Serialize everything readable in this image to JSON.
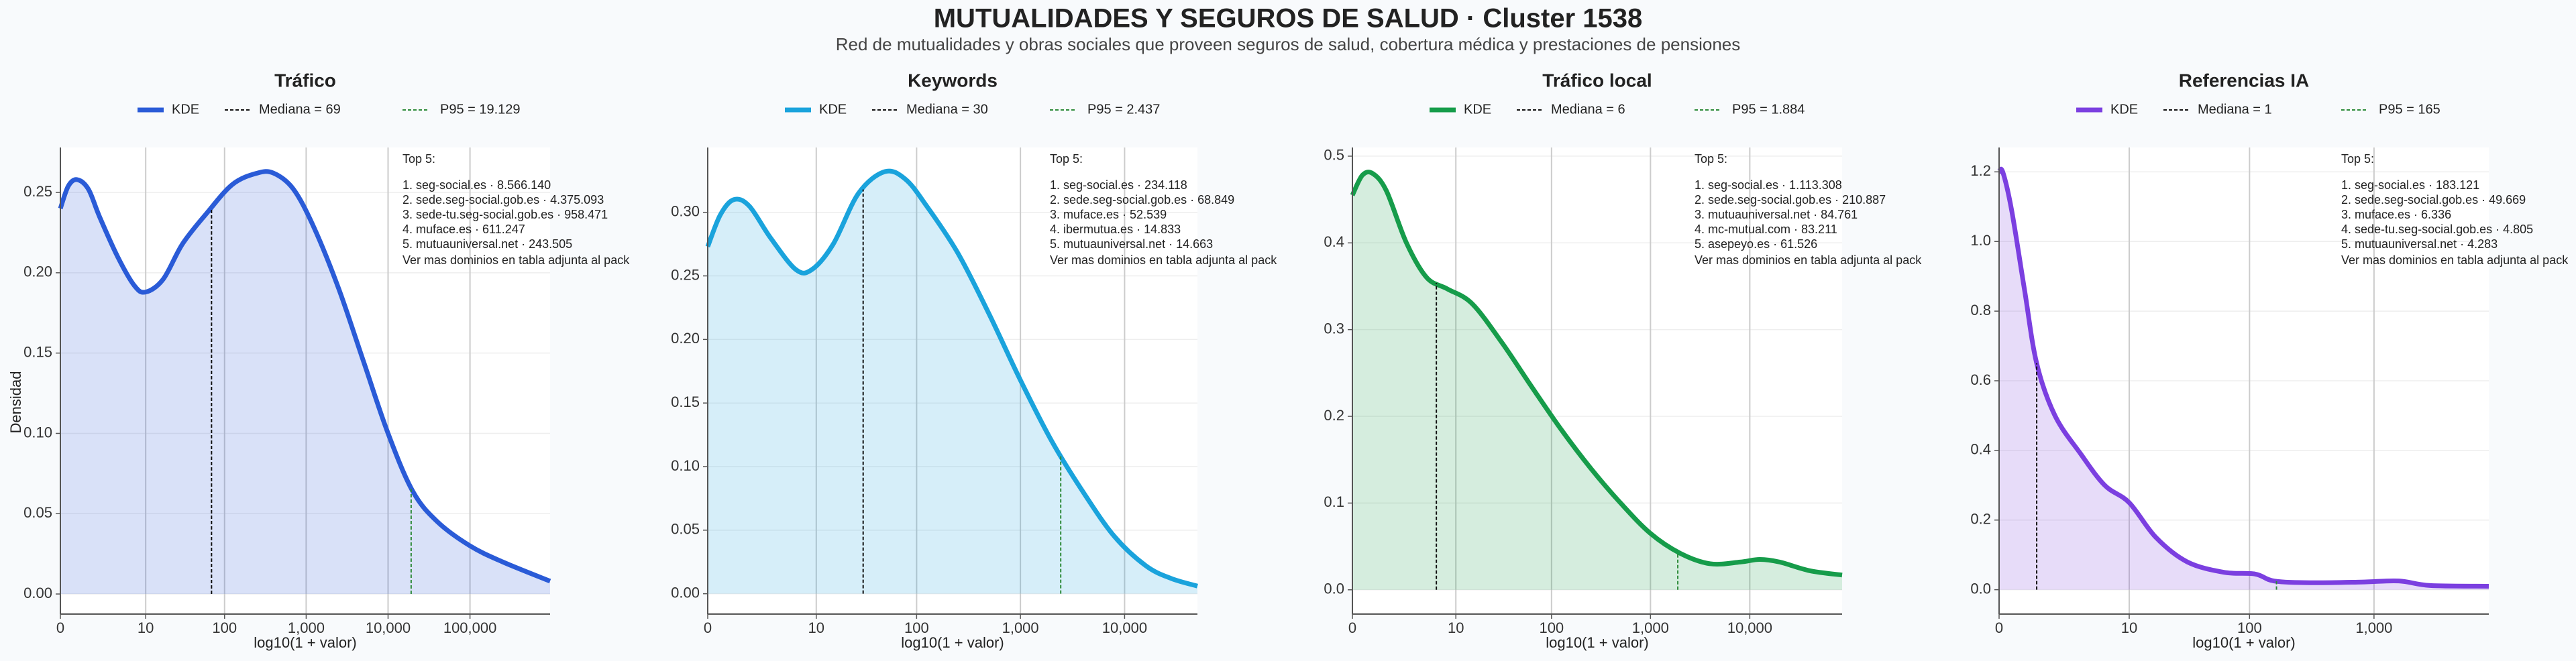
{
  "title": "MUTUALIDADES Y SEGUROS DE SALUD · Cluster 1538",
  "subtitle": "Red de mutualidades y obras sociales que proveen seguros de salud, cobertura médica y prestaciones de pensiones",
  "chart_data": [
    {
      "type": "kde",
      "title": "Tráfico",
      "xlabel": "log10(1 + valor)",
      "ylabel": "Densidad",
      "xscale": "log1p",
      "grid": true,
      "xlim": [
        0,
        950000
      ],
      "ylim": [
        -0.0125,
        0.278
      ],
      "xticks": [
        0,
        10,
        100,
        {
          "value": 1000,
          "label": "1,000"
        },
        {
          "value": 10000,
          "label": "10,000"
        },
        {
          "value": 100000,
          "label": "100,000"
        }
      ],
      "yticks": [
        {
          "value": 0,
          "label": "0.00"
        },
        {
          "value": 0.05,
          "label": "0.05"
        },
        {
          "value": 0.1,
          "label": "0.10"
        },
        {
          "value": 0.15,
          "label": "0.15"
        },
        {
          "value": 0.2,
          "label": "0.20"
        },
        {
          "value": 0.25,
          "label": "0.25"
        }
      ],
      "series": [
        {
          "name": "KDE",
          "color": "#2a5bd7",
          "x": [
            0,
            0.25,
            0.6,
            1.2,
            2,
            4,
            7,
            10,
            17,
            30,
            60,
            125,
            250,
            400,
            700,
            1250,
            2500,
            5000,
            10000,
            20000,
            40000,
            100000,
            250000,
            950000
          ],
          "values": [
            0.24,
            0.254,
            0.258,
            0.252,
            0.235,
            0.21,
            0.192,
            0.188,
            0.196,
            0.218,
            0.237,
            0.255,
            0.262,
            0.262,
            0.252,
            0.228,
            0.19,
            0.145,
            0.1,
            0.064,
            0.045,
            0.03,
            0.02,
            0.008
          ]
        }
      ],
      "median": {
        "name": "Mediana = 69",
        "value": 69,
        "color": "#111111"
      },
      "p95": {
        "name": "P95 = 19.129",
        "value": 19129,
        "color": "#2e8b3a"
      },
      "annotation": {
        "title": "Top 5:",
        "items": [
          "1. seg-social.es · 8.566.140",
          "2. sede.seg-social.gob.es · 4.375.093",
          "3. sede-tu.seg-social.gob.es · 958.471",
          "4. muface.es · 611.247",
          "5. mutuauniversal.net · 243.505"
        ],
        "note": "Ver mas dominios en tabla adjunta al pack"
      }
    },
    {
      "type": "kde",
      "title": "Keywords",
      "xlabel": "log10(1 + valor)",
      "xscale": "log1p",
      "grid": true,
      "xlim": [
        0,
        50000
      ],
      "ylim": [
        -0.016,
        0.351
      ],
      "xticks": [
        0,
        10,
        100,
        {
          "value": 1000,
          "label": "1,000"
        },
        {
          "value": 10000,
          "label": "10,000"
        }
      ],
      "yticks": [
        {
          "value": 0,
          "label": "0.00"
        },
        {
          "value": 0.05,
          "label": "0.05"
        },
        {
          "value": 0.1,
          "label": "0.10"
        },
        {
          "value": 0.15,
          "label": "0.15"
        },
        {
          "value": 0.2,
          "label": "0.20"
        },
        {
          "value": 0.25,
          "label": "0.25"
        },
        {
          "value": 0.3,
          "label": "0.30"
        }
      ],
      "series": [
        {
          "name": "KDE",
          "color": "#1aa3dc",
          "x": [
            0,
            0.32,
            0.78,
            1.5,
            3,
            6,
            9,
            15,
            27,
            49,
            78,
            125,
            250,
            500,
            1000,
            2000,
            4000,
            8000,
            16000,
            28000,
            50000
          ],
          "values": [
            0.273,
            0.298,
            0.31,
            0.305,
            0.28,
            0.255,
            0.255,
            0.275,
            0.315,
            0.332,
            0.326,
            0.305,
            0.268,
            0.22,
            0.168,
            0.12,
            0.08,
            0.045,
            0.022,
            0.012,
            0.006
          ]
        }
      ],
      "median": {
        "name": "Mediana = 30",
        "value": 30,
        "color": "#111111"
      },
      "p95": {
        "name": "P95 = 2.437",
        "value": 2437,
        "color": "#2e8b3a"
      },
      "annotation": {
        "title": "Top 5:",
        "items": [
          "1. seg-social.es · 234.118",
          "2. sede.seg-social.gob.es · 68.849",
          "3. muface.es · 52.539",
          "4. ibermutua.es · 14.833",
          "5. mutuauniversal.net · 14.663"
        ],
        "note": "Ver mas dominios en tabla adjunta al pack"
      }
    },
    {
      "type": "kde",
      "title": "Tráfico local",
      "xlabel": "log10(1 + valor)",
      "xscale": "log1p",
      "grid": true,
      "xlim": [
        0,
        85000
      ],
      "ylim": [
        -0.028,
        0.51
      ],
      "xticks": [
        0,
        10,
        100,
        {
          "value": 1000,
          "label": "1,000"
        },
        {
          "value": 10000,
          "label": "10,000"
        }
      ],
      "yticks": [
        {
          "value": 0,
          "label": "0.0"
        },
        0.1,
        0.2,
        0.3,
        0.4,
        0.5
      ],
      "series": [
        {
          "name": "KDE",
          "color": "#169c4a",
          "x": [
            0,
            0.26,
            0.6,
            1.2,
            2.5,
            4.6,
            8,
            15,
            31,
            62,
            125,
            250,
            500,
            1000,
            2000,
            4000,
            8000,
            12600,
            20000,
            40000,
            85000
          ],
          "values": [
            0.455,
            0.478,
            0.48,
            0.46,
            0.4,
            0.36,
            0.347,
            0.33,
            0.285,
            0.235,
            0.185,
            0.14,
            0.1,
            0.065,
            0.042,
            0.03,
            0.032,
            0.035,
            0.032,
            0.022,
            0.017
          ]
        }
      ],
      "median": {
        "name": "Mediana = 6",
        "value": 6,
        "color": "#111111"
      },
      "p95": {
        "name": "P95 = 1.884",
        "value": 1884,
        "color": "#2e8b3a"
      },
      "annotation": {
        "title": "Top 5:",
        "items": [
          "1. seg-social.es · 1.113.308",
          "2. sede.seg-social.gob.es · 210.887",
          "3. mutuauniversal.net · 84.761",
          "4. mc-mutual.com · 83.211",
          "5. asepeyo.es · 61.526"
        ],
        "note": "Ver mas dominios en tabla adjunta al pack"
      }
    },
    {
      "type": "kde",
      "title": "Referencias IA",
      "xlabel": "log10(1 + valor)",
      "xscale": "log1p",
      "grid": true,
      "xlim": [
        0,
        8300
      ],
      "ylim": [
        -0.07,
        1.27
      ],
      "xticks": [
        0,
        10,
        100,
        {
          "value": 1000,
          "label": "1,000"
        }
      ],
      "yticks": [
        {
          "value": 0,
          "label": "0.0"
        },
        0.2,
        0.4,
        0.6,
        0.8,
        {
          "value": 1,
          "label": "1.0"
        },
        1.2
      ],
      "series": [
        {
          "name": "KDE",
          "color": "#7b3fe0",
          "x": [
            0,
            0.07,
            0.26,
            0.6,
            1,
            1.8,
            3.5,
            6,
            10,
            17,
            31,
            62,
            111,
            158,
            315,
            793,
            1584,
            2817,
            8300
          ],
          "values": [
            1.2,
            1.2,
            1.09,
            0.86,
            0.65,
            0.5,
            0.39,
            0.3,
            0.25,
            0.15,
            0.08,
            0.05,
            0.045,
            0.025,
            0.02,
            0.022,
            0.025,
            0.012,
            0.01
          ]
        }
      ],
      "median": {
        "name": "Mediana = 1",
        "value": 1,
        "color": "#111111"
      },
      "p95": {
        "name": "P95 = 165",
        "value": 165,
        "color": "#2e8b3a"
      },
      "annotation": {
        "title": "Top 5:",
        "items": [
          "1. seg-social.es · 183.121",
          "2. sede.seg-social.gob.es · 49.669",
          "3. muface.es · 6.336",
          "4. sede-tu.seg-social.gob.es · 4.805",
          "5. mutuauniversal.net · 4.283"
        ],
        "note": "Ver mas dominios en tabla adjunta al pack"
      }
    }
  ]
}
